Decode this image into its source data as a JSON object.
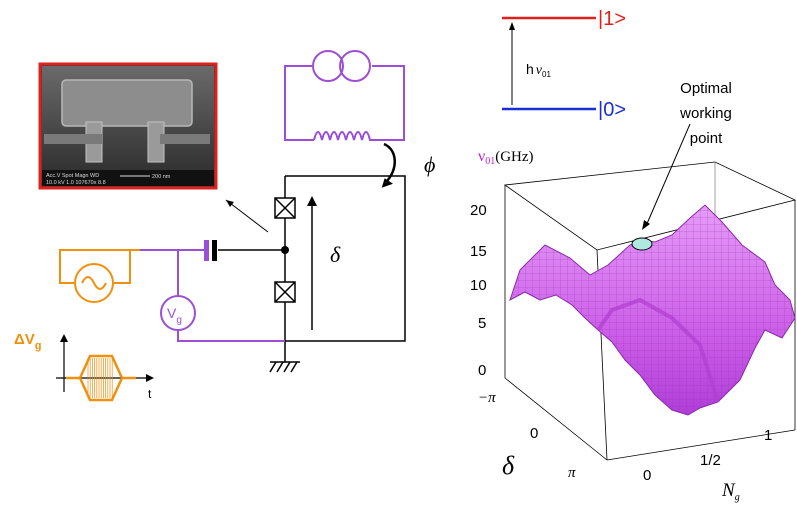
{
  "sem": {
    "scale_bar": "200 nm",
    "info_line1": "Acc.V  Spot Magn    WD",
    "info_line2": "10.0 kV 1.0  107670x 8.8",
    "border_color": "#e0201c"
  },
  "circuit": {
    "phi": "ϕ",
    "delta": "δ",
    "vg_main": "V",
    "vg_sub": "g",
    "dvg_main": "ΔV",
    "dvg_sub": "g",
    "time_axis": "t"
  },
  "levels": {
    "upper": "|1>",
    "lower": "|0>",
    "transition_h": "h",
    "transition_nu": "ν",
    "transition_sub": "01"
  },
  "surface": {
    "zlabel_nu": "ν",
    "zlabel_sub": "01",
    "zlabel_unit": "(GHz)",
    "z_ticks": [
      "20",
      "15",
      "10",
      "5",
      "0"
    ],
    "delta_ticks": [
      "−π",
      "0",
      "π"
    ],
    "delta_label": "δ",
    "ng_ticks": [
      "0",
      "1/2",
      "1"
    ],
    "ng_label_main": "N",
    "ng_label_sub": "g",
    "annotation": [
      "Optimal",
      "working",
      "point"
    ]
  },
  "colors": {
    "orange": "#f0900f",
    "purple": "#9b4fd6",
    "red": "#e0201c",
    "blue": "#1a2fd0",
    "magenta": "#c020d0",
    "surface_fill": "#d070f0",
    "point_fill": "#aee8e0"
  }
}
